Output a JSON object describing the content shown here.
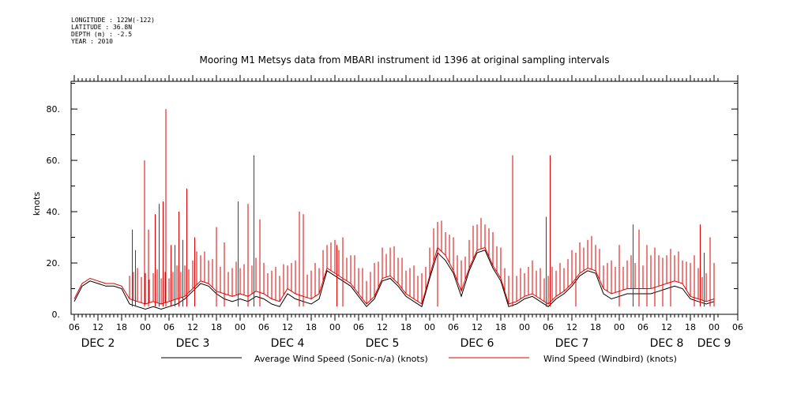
{
  "header": {
    "longitude": "LONGITUDE : 122W(-122)",
    "latitude": "LATITUDE : 36.8N",
    "depth": "DEPTH (m) : -2.5",
    "year": "YEAR : 2010"
  },
  "chart_data": {
    "type": "line",
    "title": "Mooring M1 Metsys data from MBARI instrument id 1396 at original sampling intervals",
    "ylabel": "knots",
    "xlabel": "",
    "ylim": [
      0,
      90
    ],
    "yticks": [
      "0.",
      "20.",
      "40.",
      "60.",
      "80."
    ],
    "x_unit": "hours from DEC 2 00:00",
    "xlim": [
      5,
      169
    ],
    "hour_ticks": [
      {
        "h": 6,
        "label": "06"
      },
      {
        "h": 12,
        "label": "12"
      },
      {
        "h": 18,
        "label": "18"
      },
      {
        "h": 24,
        "label": "00"
      },
      {
        "h": 30,
        "label": "06"
      },
      {
        "h": 36,
        "label": "12"
      },
      {
        "h": 42,
        "label": "18"
      },
      {
        "h": 48,
        "label": "00"
      },
      {
        "h": 54,
        "label": "06"
      },
      {
        "h": 60,
        "label": "12"
      },
      {
        "h": 66,
        "label": "18"
      },
      {
        "h": 72,
        "label": "00"
      },
      {
        "h": 78,
        "label": "06"
      },
      {
        "h": 84,
        "label": "12"
      },
      {
        "h": 90,
        "label": "18"
      },
      {
        "h": 96,
        "label": "00"
      },
      {
        "h": 102,
        "label": "06"
      },
      {
        "h": 108,
        "label": "12"
      },
      {
        "h": 114,
        "label": "18"
      },
      {
        "h": 120,
        "label": "00"
      },
      {
        "h": 126,
        "label": "06"
      },
      {
        "h": 132,
        "label": "12"
      },
      {
        "h": 138,
        "label": "18"
      },
      {
        "h": 144,
        "label": "00"
      },
      {
        "h": 150,
        "label": "06"
      },
      {
        "h": 156,
        "label": "12"
      },
      {
        "h": 162,
        "label": "18"
      },
      {
        "h": 168,
        "label": "00"
      },
      {
        "h": 174,
        "label": "06"
      }
    ],
    "day_labels": [
      {
        "h": 12,
        "label": "DEC  2"
      },
      {
        "h": 36,
        "label": "DEC  3"
      },
      {
        "h": 60,
        "label": "DEC  4"
      },
      {
        "h": 84,
        "label": "DEC  5"
      },
      {
        "h": 108,
        "label": "DEC  6"
      },
      {
        "h": 132,
        "label": "DEC  7"
      },
      {
        "h": 156,
        "label": "DEC  8"
      },
      {
        "h": 168,
        "label": "DEC  9"
      }
    ],
    "series": [
      {
        "name": "Average Wind Speed (Sonic-n/a) (knots)",
        "color": "#000000",
        "x": [
          6,
          8,
          10,
          12,
          14,
          16,
          18,
          20,
          22,
          24,
          26,
          28,
          30,
          32,
          34,
          36,
          38,
          40,
          42,
          44,
          46,
          48,
          50,
          52,
          54,
          56,
          58,
          60,
          62,
          64,
          66,
          68,
          70,
          72,
          74,
          76,
          78,
          80,
          82,
          84,
          86,
          88,
          90,
          92,
          94,
          96,
          98,
          100,
          102,
          104,
          106,
          108,
          110,
          112,
          114,
          116,
          118,
          120,
          122,
          124,
          126,
          128,
          130,
          132,
          134,
          136,
          138,
          140,
          142,
          144,
          146,
          148,
          150,
          152,
          154,
          156,
          158,
          160,
          162,
          164,
          166,
          168
        ],
        "values": [
          5,
          11,
          13,
          12,
          11,
          11,
          10,
          4,
          3,
          2,
          3,
          2,
          3,
          4,
          6,
          9,
          12,
          11,
          8,
          6,
          5,
          6,
          5,
          7,
          6,
          4,
          3,
          8,
          6,
          5,
          4,
          6,
          17,
          15,
          13,
          11,
          7,
          3,
          6,
          13,
          14,
          11,
          7,
          5,
          3,
          14,
          24,
          21,
          16,
          7,
          17,
          24,
          25,
          18,
          13,
          3,
          4,
          6,
          7,
          5,
          3,
          6,
          8,
          11,
          15,
          17,
          16,
          8,
          6,
          7,
          8,
          8,
          8,
          8,
          9,
          10,
          11,
          10,
          6,
          5,
          4,
          5
        ]
      },
      {
        "name": "Wind Speed (Windbird) (knots)",
        "color": "#dd0000",
        "x": [
          6,
          8,
          10,
          12,
          14,
          16,
          18,
          20,
          22,
          24,
          26,
          28,
          30,
          32,
          34,
          36,
          38,
          40,
          42,
          44,
          46,
          48,
          50,
          52,
          54,
          56,
          58,
          60,
          62,
          64,
          66,
          68,
          70,
          72,
          74,
          76,
          78,
          80,
          82,
          84,
          86,
          88,
          90,
          92,
          94,
          96,
          98,
          100,
          102,
          104,
          106,
          108,
          110,
          112,
          114,
          116,
          118,
          120,
          122,
          124,
          126,
          128,
          130,
          132,
          134,
          136,
          138,
          140,
          142,
          144,
          146,
          148,
          150,
          152,
          154,
          156,
          158,
          160,
          162,
          164,
          166,
          168
        ],
        "values": [
          6,
          12,
          14,
          13,
          12,
          12,
          11,
          6,
          5,
          4,
          5,
          4,
          5,
          6,
          7,
          10,
          13,
          12,
          9,
          8,
          7,
          8,
          7,
          9,
          8,
          6,
          5,
          10,
          8,
          7,
          6,
          8,
          18,
          16,
          14,
          12,
          8,
          4,
          7,
          14,
          15,
          12,
          8,
          6,
          4,
          15,
          26,
          23,
          17,
          9,
          18,
          25,
          26,
          19,
          14,
          4,
          5,
          7,
          8,
          6,
          4,
          7,
          9,
          12,
          16,
          18,
          17,
          10,
          8,
          9,
          10,
          10,
          10,
          10,
          11,
          12,
          13,
          12,
          7,
          6,
          5,
          6
        ],
        "spikes": [
          {
            "x": 20.7,
            "y": 33
          },
          {
            "x": 21.5,
            "y": 25
          },
          {
            "x": 23.8,
            "y": 60
          },
          {
            "x": 24.8,
            "y": 33
          },
          {
            "x": 26.5,
            "y": 39
          },
          {
            "x": 27.5,
            "y": 43
          },
          {
            "x": 28.5,
            "y": 44
          },
          {
            "x": 29.2,
            "y": 80
          },
          {
            "x": 30.5,
            "y": 27
          },
          {
            "x": 31.5,
            "y": 27
          },
          {
            "x": 32.5,
            "y": 40
          },
          {
            "x": 33.5,
            "y": 29
          },
          {
            "x": 34.5,
            "y": 49
          },
          {
            "x": 36.5,
            "y": 30
          },
          {
            "x": 42,
            "y": 34
          },
          {
            "x": 44,
            "y": 28
          },
          {
            "x": 47.5,
            "y": 44
          },
          {
            "x": 50,
            "y": 43
          },
          {
            "x": 51.5,
            "y": 62
          },
          {
            "x": 53,
            "y": 37
          },
          {
            "x": 63,
            "y": 40
          },
          {
            "x": 64,
            "y": 39
          },
          {
            "x": 72.5,
            "y": 27
          },
          {
            "x": 74,
            "y": 30
          },
          {
            "x": 98,
            "y": 30
          },
          {
            "x": 117,
            "y": 62
          },
          {
            "x": 125.5,
            "y": 38
          },
          {
            "x": 126.5,
            "y": 62
          },
          {
            "x": 133,
            "y": 17
          },
          {
            "x": 144,
            "y": 27
          },
          {
            "x": 147.5,
            "y": 35
          },
          {
            "x": 149,
            "y": 33
          },
          {
            "x": 151,
            "y": 27
          },
          {
            "x": 153,
            "y": 26
          },
          {
            "x": 155,
            "y": 22
          },
          {
            "x": 157,
            "y": 21
          },
          {
            "x": 163,
            "y": 23
          },
          {
            "x": 164.5,
            "y": 35
          },
          {
            "x": 165.5,
            "y": 24
          },
          {
            "x": 167,
            "y": 30
          },
          {
            "x": 168,
            "y": 20
          }
        ],
        "spike_interval_hours": 1
      }
    ],
    "legend_position": "bottom"
  }
}
